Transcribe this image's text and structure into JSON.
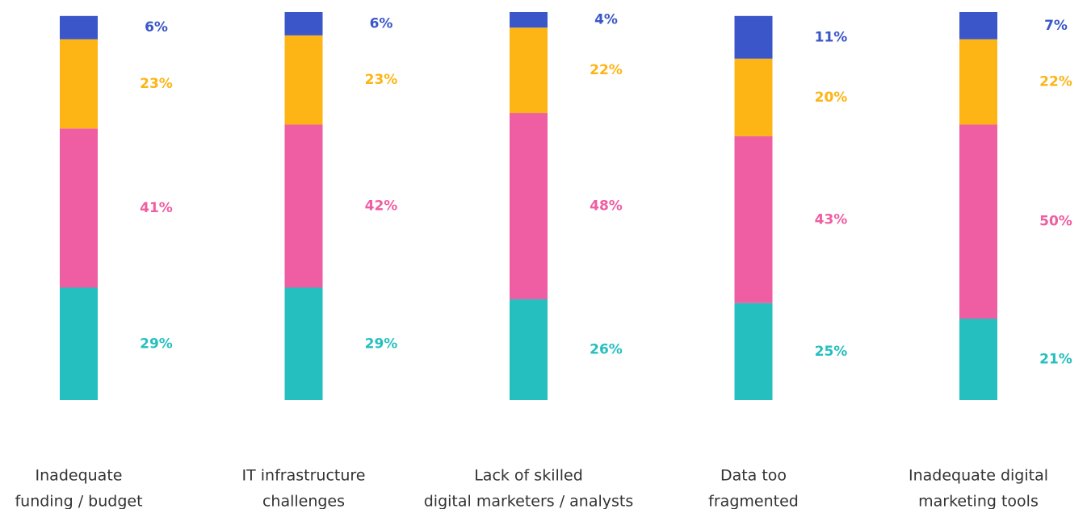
{
  "chart_data": {
    "type": "stacked-bar",
    "categories": [
      [
        "Inadequate",
        "funding / budget"
      ],
      [
        "IT infrastructure",
        "challenges"
      ],
      [
        "Lack of skilled",
        "digital marketers / analysts"
      ],
      [
        "Data too",
        "fragmented"
      ],
      [
        "Inadequate digital",
        "marketing tools"
      ]
    ],
    "ylim": [
      0,
      100
    ],
    "series": [
      {
        "color": "#26bfbf",
        "values": [
          29,
          29,
          26,
          25,
          21
        ],
        "value_labels": [
          "29%",
          "29%",
          "26%",
          "25%",
          "21%"
        ]
      },
      {
        "color": "#ef5da2",
        "values": [
          41,
          42,
          48,
          43,
          50
        ],
        "value_labels": [
          "41%",
          "42%",
          "48%",
          "43%",
          "50%"
        ]
      },
      {
        "color": "#fdb515",
        "values": [
          23,
          23,
          22,
          20,
          22
        ],
        "value_labels": [
          "23%",
          "23%",
          "22%",
          "20%",
          "22%"
        ]
      },
      {
        "color": "#3a56c8",
        "values": [
          6,
          6,
          4,
          11,
          7
        ],
        "value_labels": [
          "6%",
          "6%",
          "4%",
          "11%",
          "7%"
        ]
      }
    ]
  }
}
